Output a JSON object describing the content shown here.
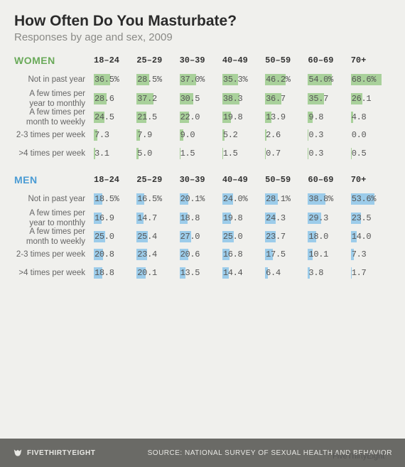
{
  "title": "How Often Do You Masturbate?",
  "subtitle": "Responses by age and sex, 2009",
  "age_brackets": [
    "18–24",
    "25–29",
    "30–39",
    "40–49",
    "50–59",
    "60–69",
    "70+"
  ],
  "row_labels": [
    "Not in past year",
    "A few times per year to monthly",
    "A few times per month to weekly",
    "2-3 times per week",
    ">4 times per week"
  ],
  "sections": [
    {
      "key": "women",
      "label": "WOMEN",
      "label_color": "#6aaa5a",
      "bar_color": "#a9d19b",
      "first_row_percent": true,
      "data": [
        [
          36.5,
          28.5,
          37.0,
          35.3,
          46.2,
          54.0,
          68.6
        ],
        [
          28.6,
          37.2,
          30.5,
          38.3,
          36.7,
          35.7,
          26.1
        ],
        [
          24.5,
          21.5,
          22.0,
          19.8,
          13.9,
          9.8,
          4.8
        ],
        [
          7.3,
          7.9,
          9.0,
          5.2,
          2.6,
          0.3,
          0.0
        ],
        [
          3.1,
          5.0,
          1.5,
          1.5,
          0.7,
          0.3,
          0.5
        ]
      ]
    },
    {
      "key": "men",
      "label": "MEN",
      "label_color": "#4a9bd4",
      "bar_color": "#9cccea",
      "first_row_percent": true,
      "data": [
        [
          18.5,
          16.5,
          20.1,
          24.0,
          28.1,
          38.8,
          53.6
        ],
        [
          16.9,
          14.7,
          18.8,
          19.8,
          24.3,
          29.3,
          23.5
        ],
        [
          25.0,
          25.4,
          27.0,
          25.0,
          23.7,
          18.0,
          14.0
        ],
        [
          20.8,
          23.4,
          20.6,
          16.8,
          17.5,
          10.1,
          7.3
        ],
        [
          18.8,
          20.1,
          13.5,
          14.4,
          6.4,
          3.8,
          1.7
        ]
      ]
    }
  ],
  "styling": {
    "background_color": "#f0f0ed",
    "footer_bg": "#6a6a66",
    "footer_text": "#e8e8e4",
    "title_color": "#2b2b2b",
    "subtitle_color": "#8a8a86",
    "bar_max_pct_of_cell": 78,
    "bar_scale_denominator": 70,
    "value_font": "Courier New",
    "title_fontsize": 21,
    "subtitle_fontsize": 15
  },
  "footer": {
    "brand": "FIVETHIRTYEIGHT",
    "source": "SOURCE: NATIONAL SURVEY OF SEXUAL HEALTH AND BEHAVIOR"
  },
  "attribution": "FiveThirtyEight"
}
